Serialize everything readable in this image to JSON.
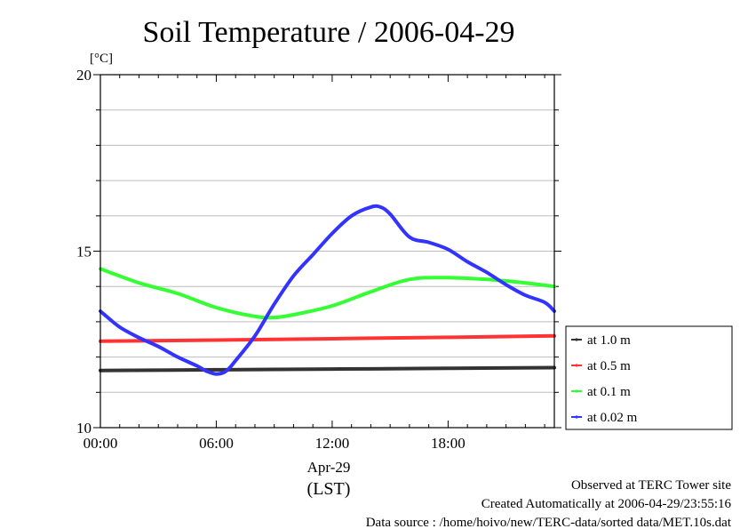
{
  "chart_data": {
    "type": "line",
    "title": "Soil Temperature / 2006-04-29",
    "ylabel": "[°C]",
    "ylim": [
      10,
      20
    ],
    "yticks": [
      10,
      15,
      20
    ],
    "ygrid_step": 1,
    "xlim": [
      0,
      23.5
    ],
    "xticks": [
      {
        "value": 0,
        "label": "00:00"
      },
      {
        "value": 6,
        "label": "06:00"
      },
      {
        "value": 12,
        "label": "12:00"
      },
      {
        "value": 18,
        "label": "18:00"
      }
    ],
    "xlabel_date": "Apr-29",
    "xlabel_tz": "(LST)",
    "grid": true,
    "legend_position": "right",
    "series": [
      {
        "name": "at 1.0 m",
        "color": "#333333",
        "x": [
          0,
          6,
          12,
          18,
          23.5
        ],
        "y": [
          11.62,
          11.64,
          11.66,
          11.68,
          11.7
        ]
      },
      {
        "name": "at 0.5 m",
        "color": "#ff3333",
        "x": [
          0,
          6,
          12,
          18,
          23.5
        ],
        "y": [
          12.45,
          12.48,
          12.52,
          12.56,
          12.6
        ]
      },
      {
        "name": "at 0.1 m",
        "color": "#33ff33",
        "x": [
          0,
          2,
          4,
          6,
          8,
          9,
          10,
          12,
          14,
          16,
          18,
          20,
          22,
          23.5
        ],
        "y": [
          14.5,
          14.1,
          13.8,
          13.4,
          13.15,
          13.12,
          13.2,
          13.45,
          13.85,
          14.2,
          14.25,
          14.2,
          14.1,
          14.0
        ]
      },
      {
        "name": "at 0.02 m",
        "color": "#3333ff",
        "x": [
          0,
          1,
          2,
          3,
          4,
          5,
          5.5,
          6,
          6.5,
          7,
          8,
          9,
          10,
          11,
          12,
          13,
          14,
          14.5,
          15,
          16,
          17,
          18,
          19,
          20,
          21,
          22,
          23,
          23.5
        ],
        "y": [
          13.3,
          12.85,
          12.55,
          12.3,
          12.0,
          11.75,
          11.6,
          11.52,
          11.6,
          11.9,
          12.6,
          13.5,
          14.3,
          14.9,
          15.5,
          16.0,
          16.25,
          16.25,
          16.05,
          15.4,
          15.25,
          15.05,
          14.7,
          14.4,
          14.05,
          13.75,
          13.55,
          13.3
        ]
      }
    ]
  },
  "footer": {
    "line1": "Observed at TERC Tower site",
    "line2": "Created Automatically at 2006-04-29/23:55:16",
    "line3": "Data source : /home/hoivo/new/TERC-data/sorted  data/MET.10s.dat"
  }
}
